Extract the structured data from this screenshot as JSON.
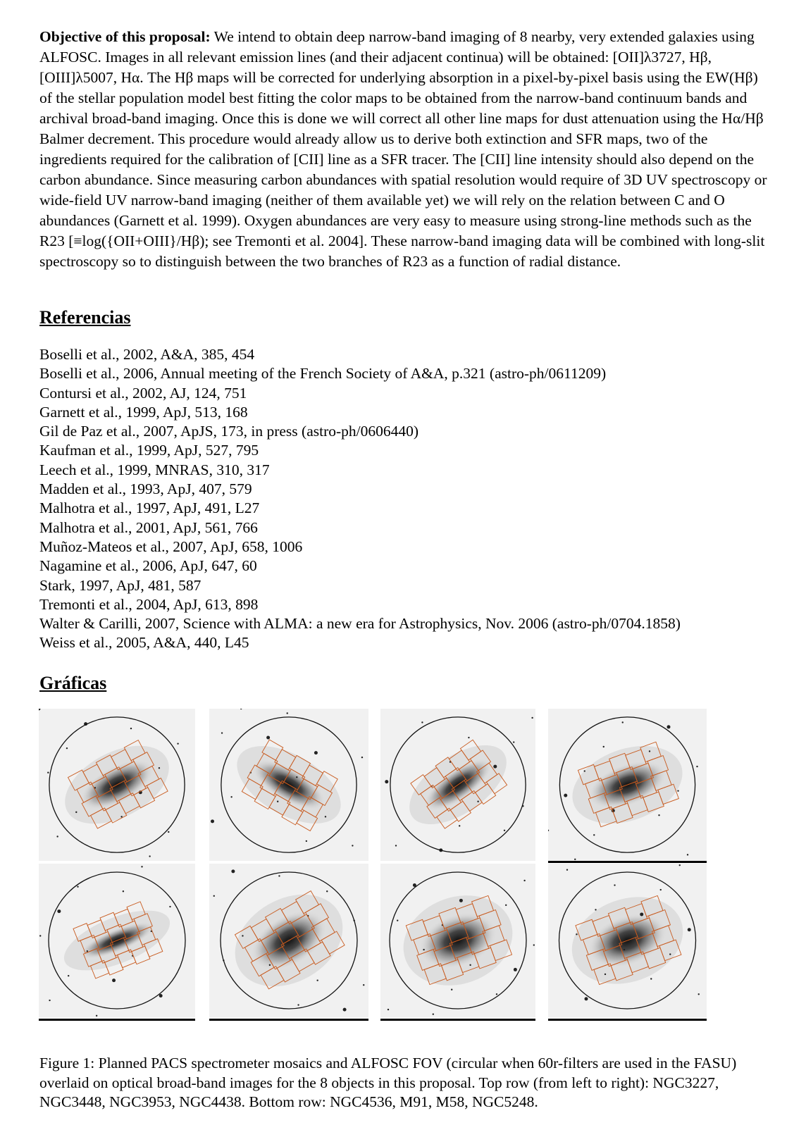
{
  "objective": {
    "label": "Objective of this proposal:",
    "text": " We intend to obtain deep narrow-band imaging of 8 nearby, very extended galaxies using ALFOSC. Images in all relevant emission lines (and their adjacent continua) will be obtained: [OII]λ3727, Hβ, [OIII]λ5007, Hα. The Hβ maps will be corrected for underlying absorption in a pixel-by-pixel basis using the EW(Hβ) of the stellar population model best fitting the color maps to be obtained from the narrow-band continuum bands and archival broad-band imaging. Once this is done we will correct all other line maps for dust attenuation using the Hα/Hβ Balmer decrement. This procedure would already allow us to derive both extinction and SFR maps, two of the ingredients required for the calibration of [CII] line as a SFR tracer. The [CII] line intensity should also depend on the carbon abundance. Since measuring carbon abundances with spatial resolution would require of 3D UV spectroscopy or wide-field UV narrow-band imaging (neither of them available yet) we will rely on the relation between C and O abundances (Garnett et al. 1999). Oxygen abundances are very easy to measure using strong-line methods such as the R23 [≡log({OII+OIII}/Hβ); see Tremonti et al. 2004]. These narrow-band imaging data will be combined with long-slit spectroscopy so to distinguish between the two branches of R23 as a function of radial distance."
  },
  "references": {
    "heading": "Referencias",
    "items": [
      "Boselli et al., 2002, A&A, 385, 454",
      "Boselli et al., 2006, Annual meeting of the French Society of A&A, p.321 (astro-ph/0611209)",
      "Contursi et al., 2002, AJ, 124, 751",
      "Garnett et al., 1999, ApJ, 513, 168",
      "Gil de Paz et al., 2007, ApJS, 173, in press (astro-ph/0606440)",
      "Kaufman et al., 1999, ApJ, 527, 795",
      "Leech et al., 1999, MNRAS, 310, 317",
      "Madden et al., 1993, ApJ, 407, 579",
      "Malhotra et al., 1997, ApJ, 491, L27",
      "Malhotra et al., 2001, ApJ, 561, 766",
      "Muñoz-Mateos et al., 2007, ApJ, 658, 1006",
      "Nagamine et al., 2006, ApJ, 647, 60",
      "Stark, 1997, ApJ, 481, 587",
      "Tremonti et al., 2004, ApJ, 613, 898",
      "Walter & Carilli, 2007, Science with ALMA: a new era for Astrophysics, Nov. 2006 (astro-ph/0704.1858)",
      "Weiss et al., 2005, A&A, 440, L45"
    ]
  },
  "figures": {
    "heading": "Gráficas",
    "panel_color": "#f1f1f1",
    "mosaic_color": "#c85a1e",
    "panels": [
      {
        "tilt": -28,
        "elong": 0.45
      },
      {
        "tilt": 30,
        "elong": 0.4
      },
      {
        "tilt": -35,
        "elong": 0.38
      },
      {
        "tilt": -20,
        "elong": 0.5
      },
      {
        "tilt": -22,
        "elong": 0.28
      },
      {
        "tilt": -30,
        "elong": 0.6
      },
      {
        "tilt": -20,
        "elong": 0.65
      },
      {
        "tilt": -20,
        "elong": 0.6
      }
    ],
    "caption": "Figure 1: Planned PACS spectrometer mosaics and ALFOSC FOV (circular when 60r-filters are used in the FASU) overlaid on optical broad-band images for the 8 objects in this proposal. Top row (from left to right): NGC3227, NGC3448, NGC3953, NGC4438. Bottom row: NGC4536, M91, M58, NGC5248."
  }
}
